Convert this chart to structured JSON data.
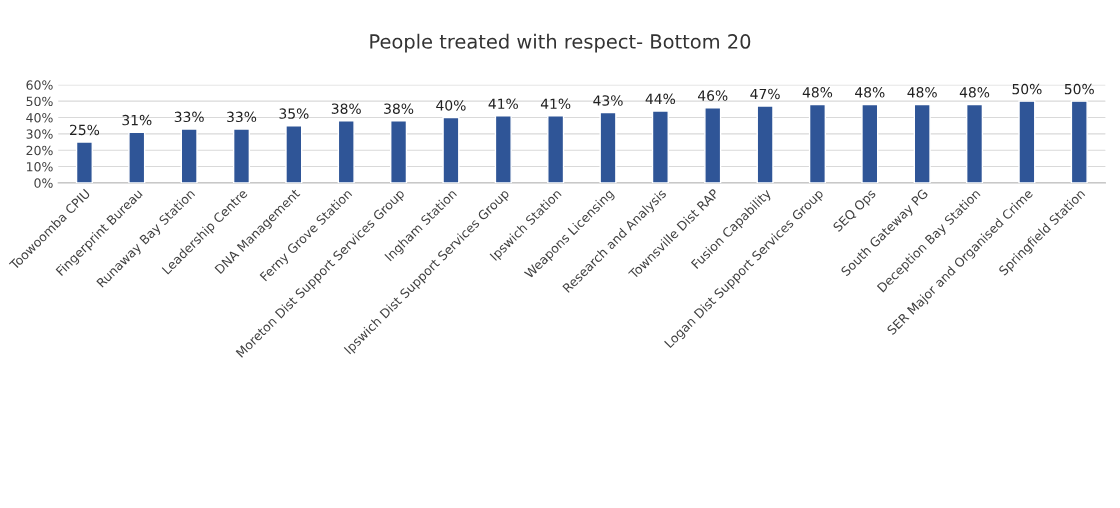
{
  "chart_data": {
    "type": "bar",
    "title": "People treated with respect- Bottom 20",
    "categories": [
      "Toowoomba CPIU",
      "Fingerprint Bureau",
      "Runaway Bay Station",
      "Leadership Centre",
      "DNA Management",
      "Ferny Grove Station",
      "Moreton Dist Support Services Group",
      "Ingham Station",
      "Ipswich Dist Support Services Group",
      "Ipswich Station",
      "Weapons Licensing",
      "Research and Analysis",
      "Townsville Dist RAP",
      "Fusion Capability",
      "Logan Dist Support Services Group",
      "SEQ Ops",
      "South Gateway PG",
      "Deception Bay Station",
      "SER Major and Organised Crime",
      "Springfield Station"
    ],
    "values": [
      25,
      31,
      33,
      33,
      35,
      38,
      38,
      40,
      41,
      41,
      43,
      44,
      46,
      47,
      48,
      48,
      48,
      48,
      50,
      50
    ],
    "value_labels": [
      "25%",
      "31%",
      "33%",
      "33%",
      "35%",
      "38%",
      "38%",
      "40%",
      "41%",
      "41%",
      "43%",
      "44%",
      "46%",
      "47%",
      "48%",
      "48%",
      "48%",
      "48%",
      "50%",
      "50%"
    ],
    "color": "#2f5597",
    "ylim": [
      0,
      60
    ],
    "yticks": [
      {
        "value": 0,
        "label": "0%"
      },
      {
        "value": 10,
        "label": "10%"
      },
      {
        "value": 20,
        "label": "20%"
      },
      {
        "value": 30,
        "label": "30%"
      },
      {
        "value": 40,
        "label": "40%"
      },
      {
        "value": 50,
        "label": "50%"
      },
      {
        "value": 60,
        "label": "60%"
      }
    ],
    "grid": "y",
    "legend": false
  }
}
